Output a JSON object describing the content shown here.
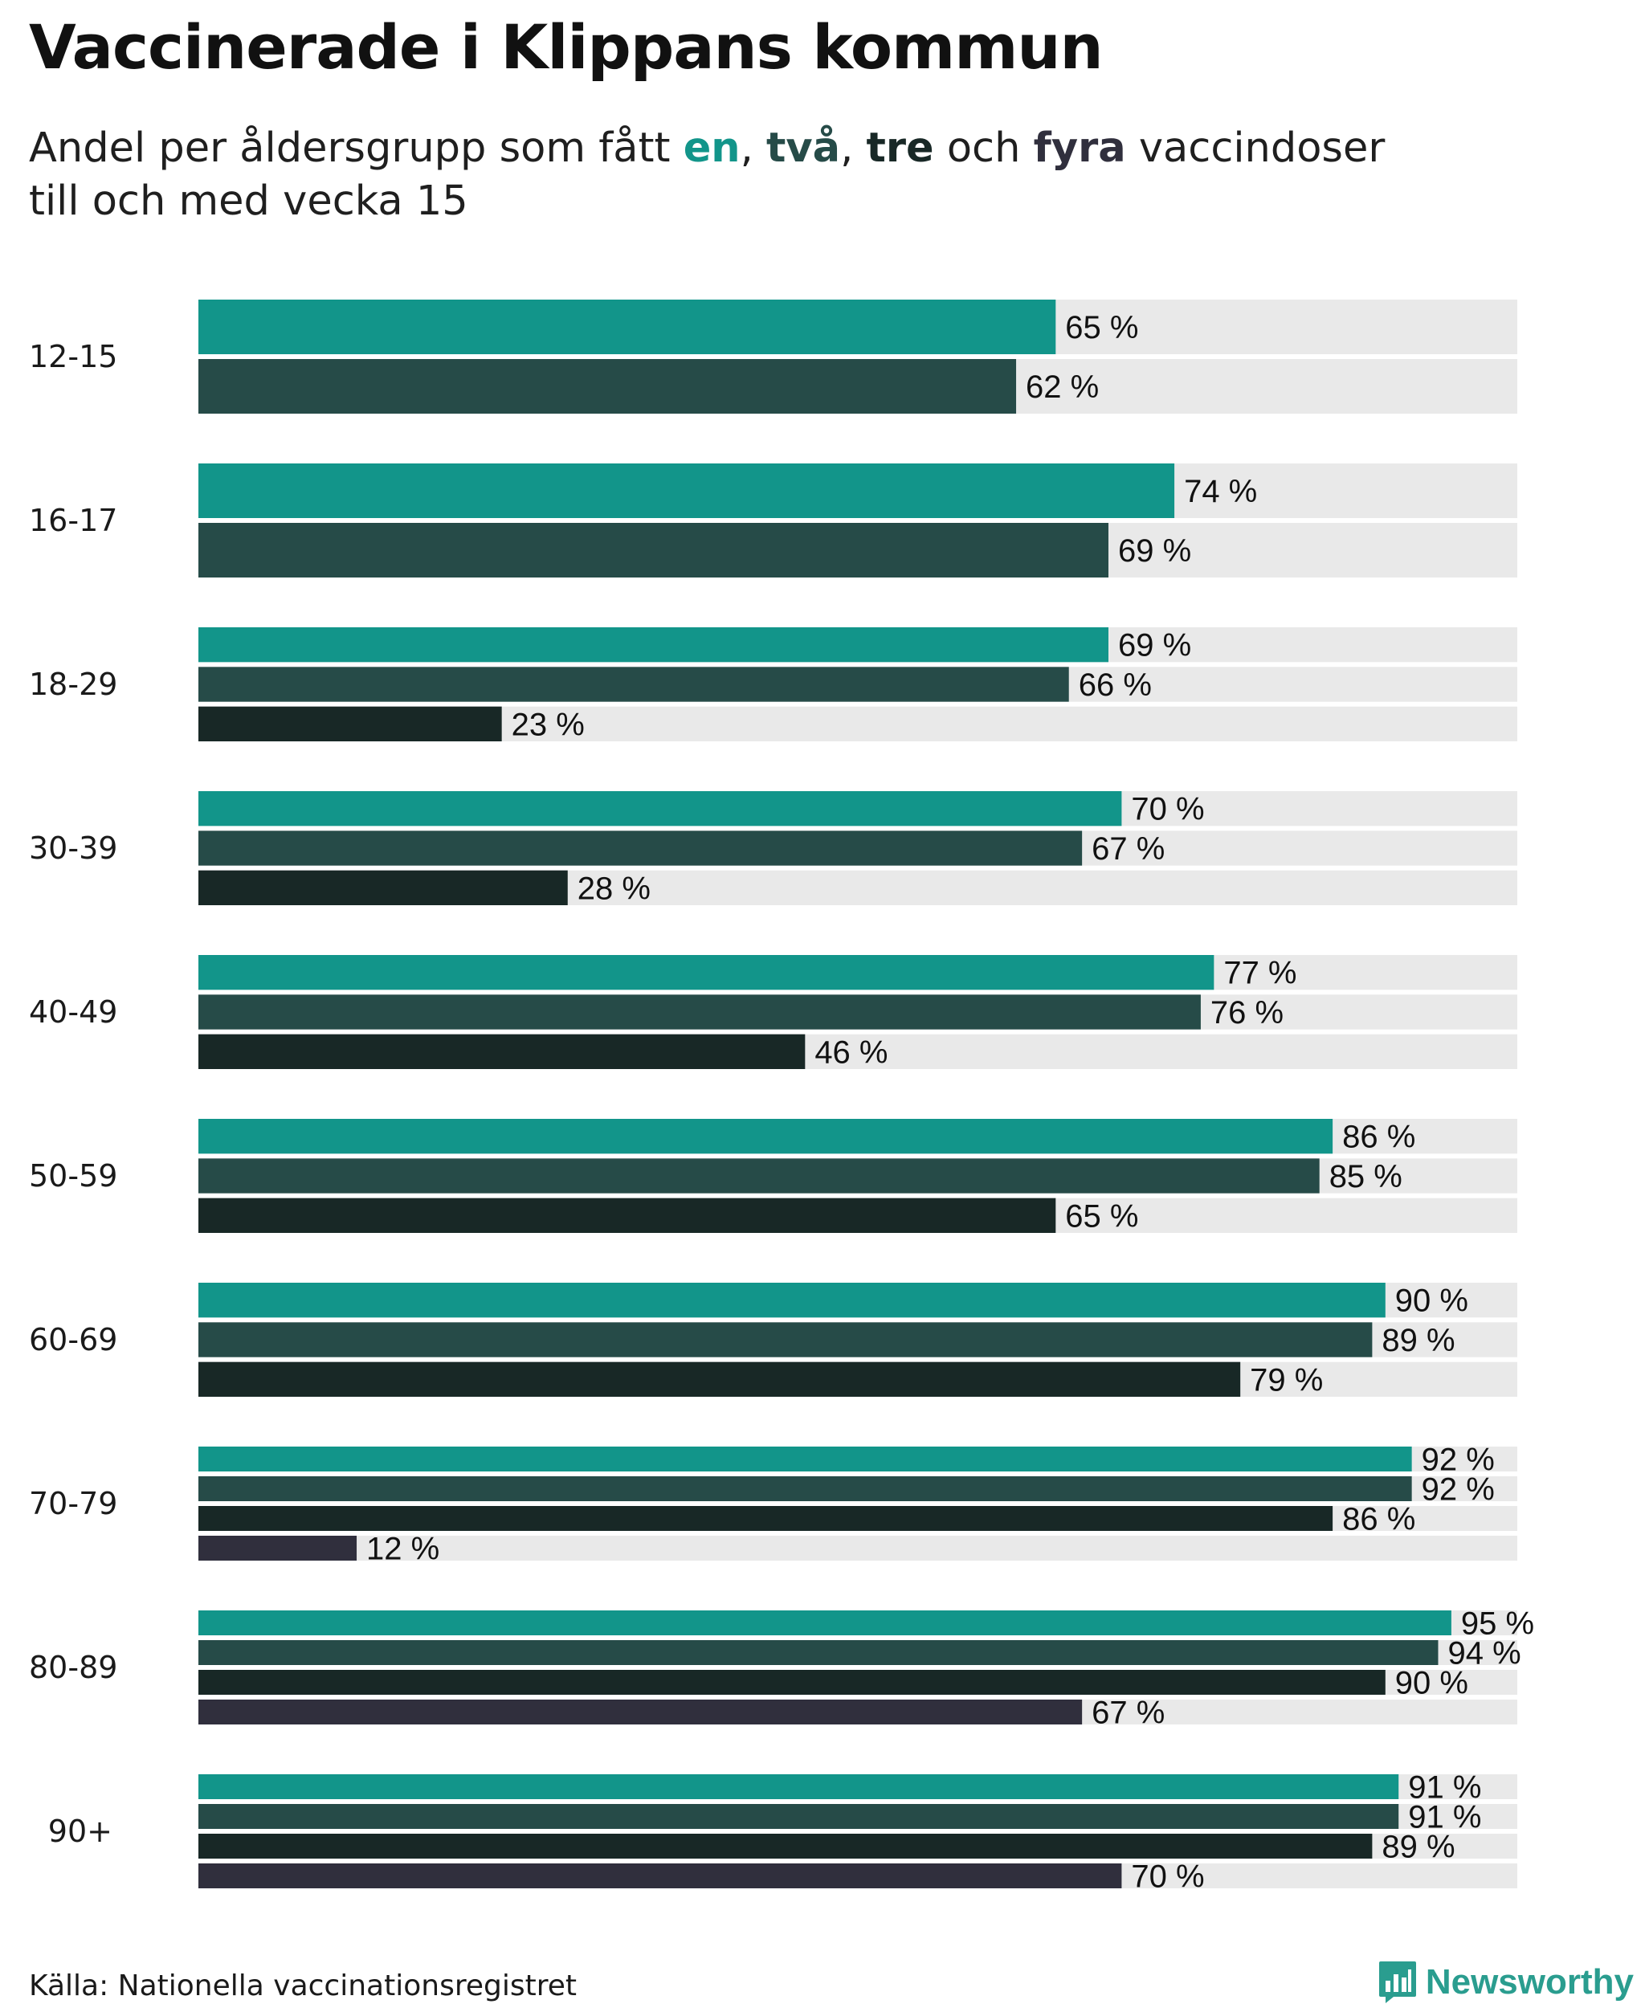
{
  "title": "Vaccinerade i Klippans kommun",
  "subtitle": {
    "prefix": "Andel per åldersgrupp som fått ",
    "dose1": "en",
    "sep1": ", ",
    "dose2": "två",
    "sep2": ", ",
    "dose3": "tre",
    "sep3": " och ",
    "dose4": "fyra",
    "suffix": " vaccindoser",
    "line2": "till och med vecka 15"
  },
  "colors": {
    "dose1": "#12958A",
    "dose2": "#264B48",
    "dose3": "#182826",
    "dose4": "#302F3D",
    "track": "#E9E9E9",
    "brand": "#2A9D8F"
  },
  "chart_data": {
    "type": "bar",
    "orientation": "horizontal",
    "xlim": [
      0,
      100
    ],
    "unit_suffix": " %",
    "series_names": [
      "en",
      "två",
      "tre",
      "fyra"
    ],
    "groups": [
      {
        "label": "12-15",
        "values": [
          65,
          62
        ]
      },
      {
        "label": "16-17",
        "values": [
          74,
          69
        ]
      },
      {
        "label": "18-29",
        "values": [
          69,
          66,
          23
        ]
      },
      {
        "label": "30-39",
        "values": [
          70,
          67,
          28
        ]
      },
      {
        "label": "40-49",
        "values": [
          77,
          76,
          46
        ]
      },
      {
        "label": "50-59",
        "values": [
          86,
          85,
          65
        ]
      },
      {
        "label": "60-69",
        "values": [
          90,
          89,
          79
        ]
      },
      {
        "label": "70-79",
        "values": [
          92,
          92,
          86,
          12
        ]
      },
      {
        "label": "80-89",
        "values": [
          95,
          94,
          90,
          67
        ]
      },
      {
        "label": "90+",
        "values": [
          91,
          91,
          89,
          70
        ]
      }
    ]
  },
  "footer": {
    "source": "Källa: Nationella vaccinationsregistret",
    "brand": "Newsworthy",
    "brand_icon": "newsworthy-logo-icon"
  }
}
